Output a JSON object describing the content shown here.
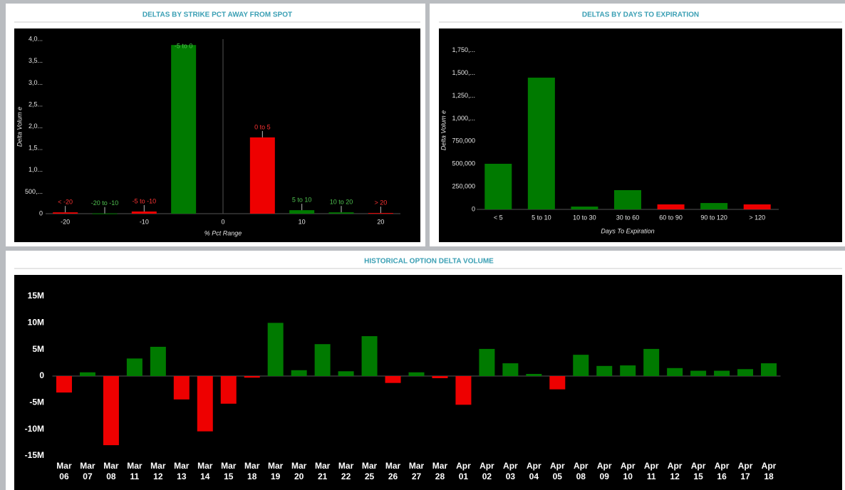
{
  "chart_data": [
    {
      "type": "bar",
      "title": "DELTAS BY STRIKE PCT AWAY FROM SPOT",
      "ylabel": "Delta Volum e",
      "xlabel": "% Pct Range",
      "x": [
        -20,
        -15,
        -10,
        -5,
        5,
        10,
        15,
        20
      ],
      "labels": [
        "< -20",
        "-20 to -10",
        "-5 to -10",
        "-5 to 0",
        "0 to 5",
        "5 to 10",
        "10 to 20",
        "> 20"
      ],
      "values": [
        30000,
        5000,
        50000,
        3870000,
        1750000,
        80000,
        30000,
        15000
      ],
      "colors": [
        "#ee0000",
        "#007a00",
        "#ee0000",
        "#007a00",
        "#ee0000",
        "#007a00",
        "#007a00",
        "#ee0000"
      ],
      "xlim": [
        -22.5,
        22.5
      ],
      "xticks": [
        -20,
        -10,
        0,
        10,
        20
      ],
      "ylim": [
        0,
        4200000
      ],
      "yticks": [
        0,
        {
          "value": 500000,
          "label": "500,..."
        },
        {
          "value": 1000000,
          "label": "1,0..."
        },
        {
          "value": 1500000,
          "label": "1,5..."
        },
        {
          "value": 2000000,
          "label": "2,0..."
        },
        {
          "value": 2500000,
          "label": "2,5..."
        },
        {
          "value": 3000000,
          "label": "3,0..."
        },
        {
          "value": 3500000,
          "label": "3,5..."
        },
        {
          "value": 4000000,
          "label": "4,0..."
        }
      ]
    },
    {
      "type": "bar",
      "title": "DELTAS BY DAYS TO EXPIRATION",
      "ylabel": "Delta Volum e",
      "xlabel": "Days To Expiration",
      "categories": [
        "< 5",
        "5 to 10",
        "10 to 30",
        "30 to 60",
        "60 to 90",
        "90 to 120",
        "> 120"
      ],
      "values": [
        502000,
        1450000,
        31000,
        212000,
        55000,
        70000,
        55000
      ],
      "colors": [
        "#007a00",
        "#007a00",
        "#007a00",
        "#007a00",
        "#ee0000",
        "#007a00",
        "#ee0000"
      ],
      "ylim": [
        0,
        1850000
      ],
      "yticks": [
        0,
        {
          "value": 250000,
          "label": "250,000"
        },
        {
          "value": 500000,
          "label": "500,000"
        },
        {
          "value": 750000,
          "label": "750,000"
        },
        {
          "value": 1000000,
          "label": "1,000,..."
        },
        {
          "value": 1250000,
          "label": "1,250,..."
        },
        {
          "value": 1500000,
          "label": "1,500,..."
        },
        {
          "value": 1750000,
          "label": "1,750,..."
        }
      ]
    },
    {
      "type": "bar",
      "title": "HISTORICAL OPTION DELTA VOLUME",
      "categories": [
        "Mar 06",
        "Mar 07",
        "Mar 08",
        "Mar 11",
        "Mar 12",
        "Mar 13",
        "Mar 14",
        "Mar 15",
        "Mar 18",
        "Mar 19",
        "Mar 20",
        "Mar 21",
        "Mar 22",
        "Mar 25",
        "Mar 26",
        "Mar 27",
        "Mar 28",
        "Apr 01",
        "Apr 02",
        "Apr 03",
        "Apr 04",
        "Apr 05",
        "Apr 08",
        "Apr 09",
        "Apr 10",
        "Apr 11",
        "Apr 12",
        "Apr 15",
        "Apr 16",
        "Apr 17",
        "Apr 18"
      ],
      "values": [
        -3100000,
        700000,
        -13000000,
        3300000,
        5500000,
        -4400000,
        -10400000,
        -5200000,
        -300000,
        10000000,
        1100000,
        6000000,
        900000,
        7500000,
        -1300000,
        700000,
        -400000,
        -5400000,
        5100000,
        2400000,
        400000,
        -2500000,
        4000000,
        1900000,
        2000000,
        5100000,
        1500000,
        1000000,
        1000000,
        1300000,
        2400000
      ],
      "positive_color": "#007a00",
      "negative_color": "#ee0000",
      "ylim": [
        -15000000,
        15000000
      ],
      "yticks": [
        {
          "value": -15000000,
          "label": "-15M"
        },
        {
          "value": -10000000,
          "label": "-10M"
        },
        {
          "value": -5000000,
          "label": "-5M"
        },
        0,
        {
          "value": 5000000,
          "label": "5M"
        },
        {
          "value": 10000000,
          "label": "10M"
        },
        {
          "value": 15000000,
          "label": "15M"
        }
      ]
    }
  ]
}
